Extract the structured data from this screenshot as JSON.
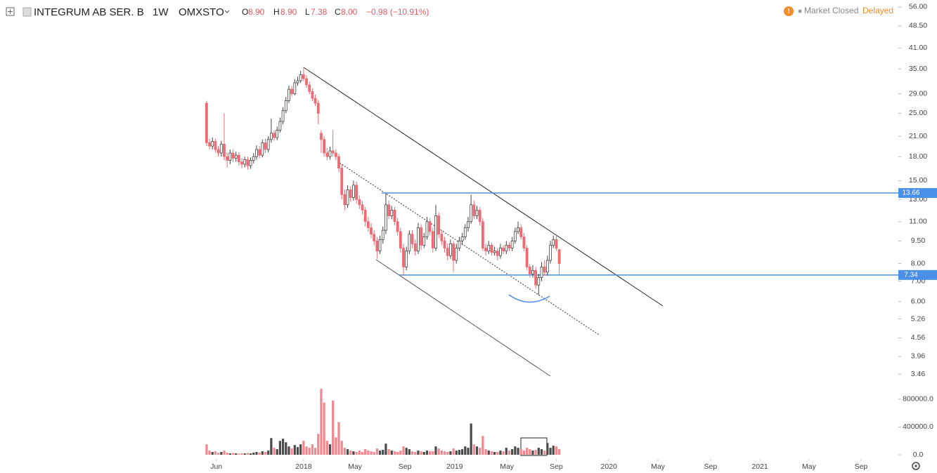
{
  "header": {
    "symbol": "INTEGRUM AB SER. B",
    "interval": "1W",
    "exchange": "OMXSTO",
    "ohlc": [
      {
        "label": "O",
        "value": "8.90"
      },
      {
        "label": "H",
        "value": "8.90"
      },
      {
        "label": "L",
        "value": "7.38"
      },
      {
        "label": "C",
        "value": "8.00"
      }
    ],
    "change": "−0.98 (−10.91%)"
  },
  "status": {
    "market": "Market Closed",
    "delay": "Delayed"
  },
  "chart_data": {
    "type": "candlestick",
    "log_scale": true,
    "up_color": "#444444",
    "down_color": "#ef6b73",
    "volume_up_color": "#4a4a4a",
    "volume_down_color": "#f4868d",
    "line_color": "#4a8fe8",
    "xlim": [
      -70.3,
      235.4
    ],
    "xticks": [
      {
        "value": 3.3,
        "label": "Jun"
      },
      {
        "value": 33,
        "label": "2018"
      },
      {
        "value": 50.5,
        "label": "May"
      },
      {
        "value": 67.5,
        "label": "Sep"
      },
      {
        "value": 84.4,
        "label": "2019"
      },
      {
        "value": 102.2,
        "label": "May"
      },
      {
        "value": 119,
        "label": "Sep"
      },
      {
        "value": 136.9,
        "label": "2020"
      },
      {
        "value": 153.6,
        "label": "May"
      },
      {
        "value": 171.5,
        "label": "Sep"
      },
      {
        "value": 188.3,
        "label": "2021"
      },
      {
        "value": 205,
        "label": "May"
      },
      {
        "value": 222.7,
        "label": "Sep"
      }
    ],
    "ylim": [
      3.25,
      59
    ],
    "yticks": [
      {
        "value": 56,
        "label": "56.00"
      },
      {
        "value": 48.5,
        "label": "48.50"
      },
      {
        "value": 41,
        "label": "41.00"
      },
      {
        "value": 35,
        "label": "35.00"
      },
      {
        "value": 29,
        "label": "29.00"
      },
      {
        "value": 25,
        "label": "25.00"
      },
      {
        "value": 21,
        "label": "21.00"
      },
      {
        "value": 18,
        "label": "18.00"
      },
      {
        "value": 15,
        "label": "15.00"
      },
      {
        "value": 13,
        "label": "13.00"
      },
      {
        "value": 11,
        "label": "11.00"
      },
      {
        "value": 9.5,
        "label": "9.50"
      },
      {
        "value": 8,
        "label": "8.00"
      },
      {
        "value": 7,
        "label": "7.00"
      },
      {
        "value": 6,
        "label": "6.00"
      },
      {
        "value": 5.26,
        "label": "5.26"
      },
      {
        "value": 4.56,
        "label": "4.56"
      },
      {
        "value": 3.96,
        "label": "3.96"
      },
      {
        "value": 3.46,
        "label": "3.46"
      }
    ],
    "volume_ylim": [
      0,
      1040000
    ],
    "volume_ticks": [
      {
        "value": 800000,
        "label": "800000.0"
      },
      {
        "value": 400000,
        "label": "400000.0"
      },
      {
        "value": 0,
        "label": "0.0"
      }
    ],
    "hlines": [
      13.66,
      7.34
    ],
    "open": [
      27.0,
      20.0,
      19.5,
      20.2,
      19.0,
      18.5,
      19.8,
      18.0,
      17.5,
      18.5,
      17.8,
      18.2,
      17.3,
      17.0,
      17.6,
      16.8,
      17.5,
      18.0,
      19.0,
      18.2,
      20.0,
      19.0,
      20.5,
      21.5,
      20.8,
      22.0,
      23.5,
      25.5,
      27.5,
      30.0,
      29.0,
      31.5,
      32.0,
      33.5,
      32.5,
      31.0,
      29.5,
      28.0,
      27.0,
      21.5,
      20.5,
      18.5,
      18.0,
      18.8,
      18.5,
      18.0,
      16.5,
      13.5,
      12.5,
      14.0,
      13.2,
      14.5,
      13.0,
      12.5,
      12.0,
      11.0,
      10.5,
      10.0,
      9.5,
      8.8,
      9.6,
      10.3,
      12.5,
      11.5,
      12.0,
      11.0,
      10.2,
      9.0,
      7.8,
      8.8,
      10.0,
      9.3,
      8.8,
      10.5,
      9.2,
      9.8,
      11.0,
      10.2,
      9.0,
      11.5,
      10.0,
      9.5,
      9.0,
      8.5,
      9.3,
      8.2,
      9.0,
      9.5,
      9.8,
      10.5,
      11.0,
      12.5,
      11.5,
      12.0,
      11.0,
      9.0,
      8.8,
      9.2,
      8.7,
      8.8,
      8.5,
      9.0,
      8.8,
      9.2,
      9.0,
      9.5,
      10.2,
      10.5,
      9.8,
      9.0,
      7.8,
      7.4,
      7.6,
      6.8,
      7.2,
      7.8,
      7.5,
      8.2,
      9.2,
      9.6,
      8.9
    ],
    "high": [
      27.5,
      20.6,
      20.8,
      20.6,
      19.5,
      20.3,
      25.0,
      18.6,
      19.0,
      19.0,
      18.7,
      18.6,
      17.8,
      18.0,
      18.0,
      17.9,
      18.5,
      19.6,
      19.5,
      20.5,
      20.6,
      21.0,
      24.0,
      22.0,
      22.6,
      24.2,
      26.2,
      28.3,
      30.8,
      30.8,
      32.4,
      33.0,
      34.5,
      35.5,
      33.4,
      31.8,
      30.2,
      28.8,
      27.6,
      22.0,
      21.0,
      19.2,
      19.4,
      22.0,
      19.0,
      18.4,
      17.0,
      14.0,
      14.5,
      14.4,
      15.0,
      14.9,
      13.4,
      12.9,
      12.3,
      11.4,
      10.9,
      10.3,
      9.8,
      9.9,
      10.6,
      13.6,
      12.9,
      12.4,
      12.3,
      11.3,
      10.5,
      9.3,
      9.1,
      10.3,
      10.3,
      9.6,
      10.9,
      10.8,
      10.1,
      11.4,
      11.3,
      10.5,
      12.5,
      11.8,
      10.3,
      9.8,
      9.3,
      9.6,
      9.5,
      9.3,
      9.8,
      10.1,
      10.8,
      11.4,
      13.5,
      12.9,
      12.4,
      12.3,
      11.3,
      9.3,
      9.5,
      9.4,
      9.1,
      9.0,
      9.3,
      9.2,
      9.5,
      9.4,
      9.8,
      10.5,
      11.0,
      10.8,
      10.1,
      9.2,
      8.0,
      7.9,
      7.8,
      7.4,
      8.1,
      8.2,
      8.5,
      9.5,
      9.9,
      10.0,
      8.9
    ],
    "low": [
      19.5,
      19.0,
      19.0,
      18.6,
      18.0,
      18.0,
      17.5,
      16.6,
      17.0,
      17.3,
      17.3,
      16.8,
      16.5,
      16.6,
      16.3,
      16.4,
      17.1,
      17.6,
      17.8,
      17.9,
      18.5,
      18.6,
      20.0,
      20.3,
      20.4,
      21.6,
      23.0,
      25.0,
      27.0,
      28.4,
      28.6,
      30.8,
      31.5,
      31.8,
      30.4,
      28.9,
      27.4,
      26.4,
      23.0,
      18.5,
      18.0,
      17.5,
      17.6,
      18.0,
      17.5,
      16.0,
      13.0,
      12.0,
      12.2,
      12.8,
      12.9,
      12.6,
      12.1,
      11.6,
      10.6,
      10.2,
      9.7,
      9.2,
      8.3,
      8.6,
      9.3,
      10.0,
      11.2,
      11.2,
      10.7,
      9.9,
      8.7,
      7.3,
      7.6,
      8.6,
      9.0,
      8.5,
      8.6,
      8.9,
      9.0,
      9.6,
      9.9,
      8.7,
      8.8,
      9.7,
      9.2,
      8.7,
      8.2,
      8.3,
      7.5,
      8.0,
      8.8,
      9.2,
      9.6,
      10.2,
      10.8,
      11.2,
      11.2,
      10.7,
      8.8,
      8.5,
      8.6,
      8.5,
      8.5,
      8.2,
      8.3,
      8.6,
      8.6,
      8.8,
      8.8,
      9.3,
      10.0,
      9.6,
      8.8,
      7.6,
      7.2,
      7.2,
      6.6,
      6.3,
      7.0,
      7.3,
      7.3,
      8.0,
      9.0,
      8.8,
      7.38
    ],
    "close": [
      20.0,
      19.5,
      20.2,
      19.0,
      18.5,
      19.8,
      18.0,
      17.5,
      18.5,
      17.8,
      18.2,
      17.3,
      17.0,
      17.6,
      16.8,
      17.5,
      18.0,
      19.0,
      18.2,
      20.0,
      19.0,
      20.5,
      21.5,
      20.8,
      22.0,
      23.5,
      25.5,
      27.5,
      30.0,
      29.0,
      31.5,
      32.0,
      33.5,
      32.5,
      31.0,
      29.5,
      28.0,
      27.0,
      25.0,
      20.5,
      18.5,
      18.0,
      18.8,
      18.5,
      18.0,
      16.5,
      13.5,
      12.5,
      14.0,
      13.2,
      14.5,
      13.0,
      12.5,
      12.0,
      11.0,
      10.5,
      10.0,
      9.5,
      8.8,
      9.6,
      10.3,
      12.5,
      11.5,
      12.0,
      11.0,
      10.2,
      9.0,
      7.8,
      8.8,
      10.0,
      9.3,
      8.8,
      10.5,
      9.2,
      9.8,
      11.0,
      10.2,
      9.0,
      11.5,
      10.0,
      9.5,
      9.0,
      8.5,
      9.3,
      8.2,
      9.0,
      9.5,
      9.8,
      10.5,
      11.0,
      12.5,
      11.5,
      12.0,
      11.0,
      9.0,
      8.8,
      9.2,
      8.7,
      8.8,
      8.5,
      9.0,
      8.8,
      9.2,
      9.0,
      9.5,
      10.2,
      10.5,
      9.8,
      9.0,
      7.8,
      7.4,
      7.6,
      6.8,
      7.2,
      7.8,
      7.5,
      8.2,
      9.2,
      9.6,
      8.98,
      8.0
    ],
    "volume": [
      150000,
      60000,
      40000,
      50000,
      30000,
      40000,
      60000,
      30000,
      20000,
      25000,
      20000,
      15000,
      20000,
      20000,
      25000,
      20000,
      30000,
      40000,
      30000,
      50000,
      40000,
      60000,
      240000,
      100000,
      80000,
      200000,
      230000,
      180000,
      120000,
      90000,
      140000,
      110000,
      150000,
      200000,
      120000,
      100000,
      150000,
      100000,
      300000,
      950000,
      750000,
      200000,
      150000,
      780000,
      250000,
      470000,
      200000,
      100000,
      80000,
      60000,
      50000,
      40000,
      60000,
      40000,
      80000,
      60000,
      50000,
      40000,
      90000,
      60000,
      70000,
      160000,
      80000,
      60000,
      50000,
      40000,
      60000,
      120000,
      100000,
      80000,
      50000,
      40000,
      60000,
      50000,
      40000,
      60000,
      50000,
      50000,
      120000,
      90000,
      60000,
      50000,
      40000,
      50000,
      90000,
      60000,
      70000,
      80000,
      120000,
      100000,
      450000,
      150000,
      120000,
      100000,
      270000,
      80000,
      60000,
      50000,
      40000,
      40000,
      60000,
      50000,
      100000,
      60000,
      80000,
      120000,
      100000,
      80000,
      60000,
      100000,
      80000,
      60000,
      70000,
      100000,
      80000,
      60000,
      170000,
      100000,
      130000,
      120000,
      80000
    ]
  }
}
